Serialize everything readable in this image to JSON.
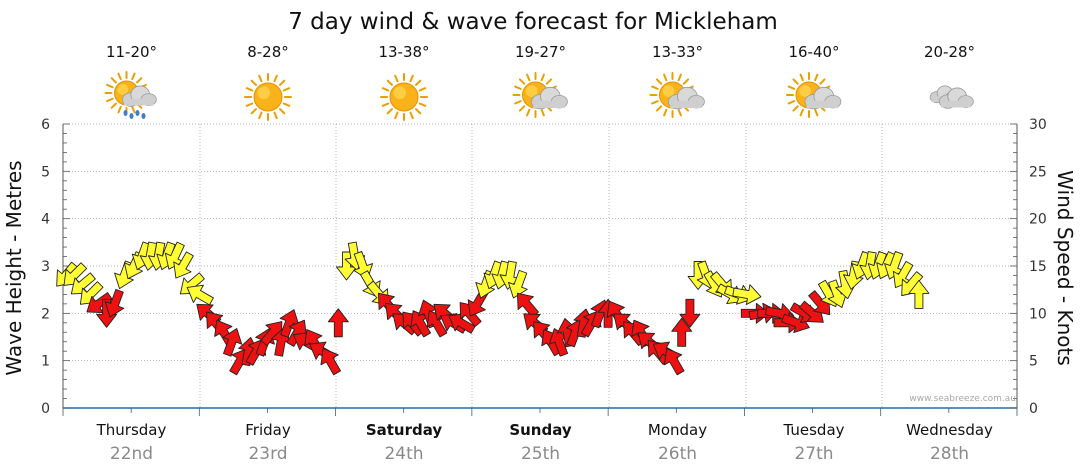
{
  "chart_data": {
    "type": "line",
    "title": "7 day wind & wave forecast for Mickleham",
    "ylabel_left": "Wave Height - Metres",
    "ylabel_right": "Wind Speed - Knots",
    "ylim_left": [
      0,
      6
    ],
    "ylim_right": [
      0,
      30
    ],
    "yticks_left": [
      "0",
      "1",
      "2",
      "3",
      "4",
      "5",
      "6"
    ],
    "yticks_right": [
      "0",
      "5",
      "10",
      "15",
      "20",
      "25",
      "30"
    ],
    "grid": true,
    "credit": "www.seabreeze.com.au",
    "days": [
      {
        "name": "Thursday",
        "date": "22nd",
        "bold": false,
        "temp": "11-20°",
        "icon": "sun-cloud-rain-icon"
      },
      {
        "name": "Friday",
        "date": "23rd",
        "bold": false,
        "temp": "8-28°",
        "icon": "sun-icon"
      },
      {
        "name": "Saturday",
        "date": "24th",
        "bold": true,
        "temp": "13-38°",
        "icon": "sun-icon"
      },
      {
        "name": "Sunday",
        "date": "25th",
        "bold": true,
        "temp": "19-27°",
        "icon": "sun-cloud-icon"
      },
      {
        "name": "Monday",
        "date": "26th",
        "bold": false,
        "temp": "13-33°",
        "icon": "sun-cloud-icon"
      },
      {
        "name": "Tuesday",
        "date": "27th",
        "bold": false,
        "temp": "16-40°",
        "icon": "sun-cloud-icon"
      },
      {
        "name": "Wednesday",
        "date": "28th",
        "bold": false,
        "temp": "20-28°",
        "icon": "cloud-icon"
      }
    ],
    "colors": {
      "grid": "#999999",
      "red": "#ee1111",
      "yellow": "#ffff33",
      "outline": "#222222"
    },
    "wind_series": [
      {
        "x": 0.02,
        "v": 14,
        "dir": 220
      },
      {
        "x": 0.08,
        "v": 14,
        "dir": 225
      },
      {
        "x": 0.14,
        "v": 13,
        "dir": 230
      },
      {
        "x": 0.2,
        "v": 12,
        "dir": 225
      },
      {
        "x": 0.26,
        "v": 11,
        "dir": 235
      },
      {
        "x": 0.32,
        "v": 10,
        "dir": 180
      },
      {
        "x": 0.38,
        "v": 11,
        "dir": 200
      },
      {
        "x": 0.45,
        "v": 14,
        "dir": 200
      },
      {
        "x": 0.52,
        "v": 15,
        "dir": 205
      },
      {
        "x": 0.58,
        "v": 16,
        "dir": 200
      },
      {
        "x": 0.64,
        "v": 16,
        "dir": 190
      },
      {
        "x": 0.7,
        "v": 16,
        "dir": 190
      },
      {
        "x": 0.76,
        "v": 16,
        "dir": 200
      },
      {
        "x": 0.82,
        "v": 16,
        "dir": 205
      },
      {
        "x": 0.88,
        "v": 15,
        "dir": 210
      },
      {
        "x": 0.94,
        "v": 13,
        "dir": 230
      },
      {
        "x": 1.0,
        "v": 12,
        "dir": 300
      },
      {
        "x": 1.06,
        "v": 10,
        "dir": 310
      },
      {
        "x": 1.12,
        "v": 9,
        "dir": 320
      },
      {
        "x": 1.18,
        "v": 8,
        "dir": 330
      },
      {
        "x": 1.24,
        "v": 7,
        "dir": 20
      },
      {
        "x": 1.3,
        "v": 5,
        "dir": 30
      },
      {
        "x": 1.36,
        "v": 6,
        "dir": 10
      },
      {
        "x": 1.42,
        "v": 6,
        "dir": 30
      },
      {
        "x": 1.48,
        "v": 7,
        "dir": 20
      },
      {
        "x": 1.54,
        "v": 8,
        "dir": 40
      },
      {
        "x": 1.6,
        "v": 7,
        "dir": 10
      },
      {
        "x": 1.66,
        "v": 9,
        "dir": 20
      },
      {
        "x": 1.72,
        "v": 8,
        "dir": 30
      },
      {
        "x": 1.78,
        "v": 7,
        "dir": 300
      },
      {
        "x": 1.84,
        "v": 7,
        "dir": 330
      },
      {
        "x": 1.9,
        "v": 6,
        "dir": 300
      },
      {
        "x": 1.96,
        "v": 5,
        "dir": 330
      },
      {
        "x": 2.02,
        "v": 9,
        "dir": 0
      },
      {
        "x": 2.08,
        "v": 15,
        "dir": 180
      },
      {
        "x": 2.14,
        "v": 16,
        "dir": 170
      },
      {
        "x": 2.2,
        "v": 15,
        "dir": 160
      },
      {
        "x": 2.26,
        "v": 13,
        "dir": 150
      },
      {
        "x": 2.32,
        "v": 12,
        "dir": 140
      },
      {
        "x": 2.38,
        "v": 11,
        "dir": 320
      },
      {
        "x": 2.44,
        "v": 10,
        "dir": 315
      },
      {
        "x": 2.5,
        "v": 9,
        "dir": 310
      },
      {
        "x": 2.56,
        "v": 9,
        "dir": 320
      },
      {
        "x": 2.62,
        "v": 9,
        "dir": 330
      },
      {
        "x": 2.68,
        "v": 10,
        "dir": 340
      },
      {
        "x": 2.74,
        "v": 9,
        "dir": 330
      },
      {
        "x": 2.8,
        "v": 10,
        "dir": 310
      },
      {
        "x": 2.86,
        "v": 9,
        "dir": 300
      },
      {
        "x": 2.92,
        "v": 9,
        "dir": 300
      },
      {
        "x": 2.98,
        "v": 10,
        "dir": 320
      },
      {
        "x": 3.04,
        "v": 11,
        "dir": 210
      },
      {
        "x": 3.1,
        "v": 13,
        "dir": 200
      },
      {
        "x": 3.16,
        "v": 14,
        "dir": 200
      },
      {
        "x": 3.22,
        "v": 14,
        "dir": 195
      },
      {
        "x": 3.28,
        "v": 14,
        "dir": 190
      },
      {
        "x": 3.34,
        "v": 13,
        "dir": 200
      },
      {
        "x": 3.4,
        "v": 11,
        "dir": 320
      },
      {
        "x": 3.46,
        "v": 9,
        "dir": 310
      },
      {
        "x": 3.52,
        "v": 8,
        "dir": 320
      },
      {
        "x": 3.58,
        "v": 7,
        "dir": 330
      },
      {
        "x": 3.64,
        "v": 7,
        "dir": 340
      },
      {
        "x": 3.7,
        "v": 8,
        "dir": 350
      },
      {
        "x": 3.76,
        "v": 8,
        "dir": 20
      },
      {
        "x": 3.82,
        "v": 9,
        "dir": 10
      },
      {
        "x": 3.88,
        "v": 9,
        "dir": 30
      },
      {
        "x": 3.94,
        "v": 10,
        "dir": 20
      },
      {
        "x": 4.0,
        "v": 10,
        "dir": 0
      },
      {
        "x": 4.06,
        "v": 10,
        "dir": 330
      },
      {
        "x": 4.12,
        "v": 9,
        "dir": 310
      },
      {
        "x": 4.18,
        "v": 8,
        "dir": 320
      },
      {
        "x": 4.24,
        "v": 8,
        "dir": 330
      },
      {
        "x": 4.3,
        "v": 7,
        "dir": 310
      },
      {
        "x": 4.36,
        "v": 6,
        "dir": 320
      },
      {
        "x": 4.42,
        "v": 6,
        "dir": 300
      },
      {
        "x": 4.48,
        "v": 5,
        "dir": 330
      },
      {
        "x": 4.54,
        "v": 8,
        "dir": 0
      },
      {
        "x": 4.6,
        "v": 10,
        "dir": 180
      },
      {
        "x": 4.66,
        "v": 14,
        "dir": 180
      },
      {
        "x": 4.72,
        "v": 14,
        "dir": 160
      },
      {
        "x": 4.78,
        "v": 13,
        "dir": 150
      },
      {
        "x": 4.84,
        "v": 13,
        "dir": 140
      },
      {
        "x": 4.9,
        "v": 12,
        "dir": 120
      },
      {
        "x": 4.96,
        "v": 12,
        "dir": 110
      },
      {
        "x": 5.02,
        "v": 12,
        "dir": 100
      },
      {
        "x": 5.08,
        "v": 10,
        "dir": 90
      },
      {
        "x": 5.14,
        "v": 10,
        "dir": 80
      },
      {
        "x": 5.2,
        "v": 10,
        "dir": 90
      },
      {
        "x": 5.26,
        "v": 10,
        "dir": 100
      },
      {
        "x": 5.32,
        "v": 9,
        "dir": 90
      },
      {
        "x": 5.38,
        "v": 9,
        "dir": 110
      },
      {
        "x": 5.44,
        "v": 10,
        "dir": 120
      },
      {
        "x": 5.5,
        "v": 10,
        "dir": 130
      },
      {
        "x": 5.56,
        "v": 11,
        "dir": 140
      },
      {
        "x": 5.62,
        "v": 12,
        "dir": 150
      },
      {
        "x": 5.68,
        "v": 12,
        "dir": 160
      },
      {
        "x": 5.74,
        "v": 13,
        "dir": 170
      },
      {
        "x": 5.8,
        "v": 14,
        "dir": 190
      },
      {
        "x": 5.86,
        "v": 15,
        "dir": 200
      },
      {
        "x": 5.92,
        "v": 15,
        "dir": 190
      },
      {
        "x": 5.98,
        "v": 15,
        "dir": 200
      },
      {
        "x": 6.04,
        "v": 15,
        "dir": 205
      },
      {
        "x": 6.1,
        "v": 15,
        "dir": 200
      },
      {
        "x": 6.16,
        "v": 14,
        "dir": 210
      },
      {
        "x": 6.22,
        "v": 13,
        "dir": 220
      },
      {
        "x": 6.28,
        "v": 12,
        "dir": 0
      }
    ]
  }
}
